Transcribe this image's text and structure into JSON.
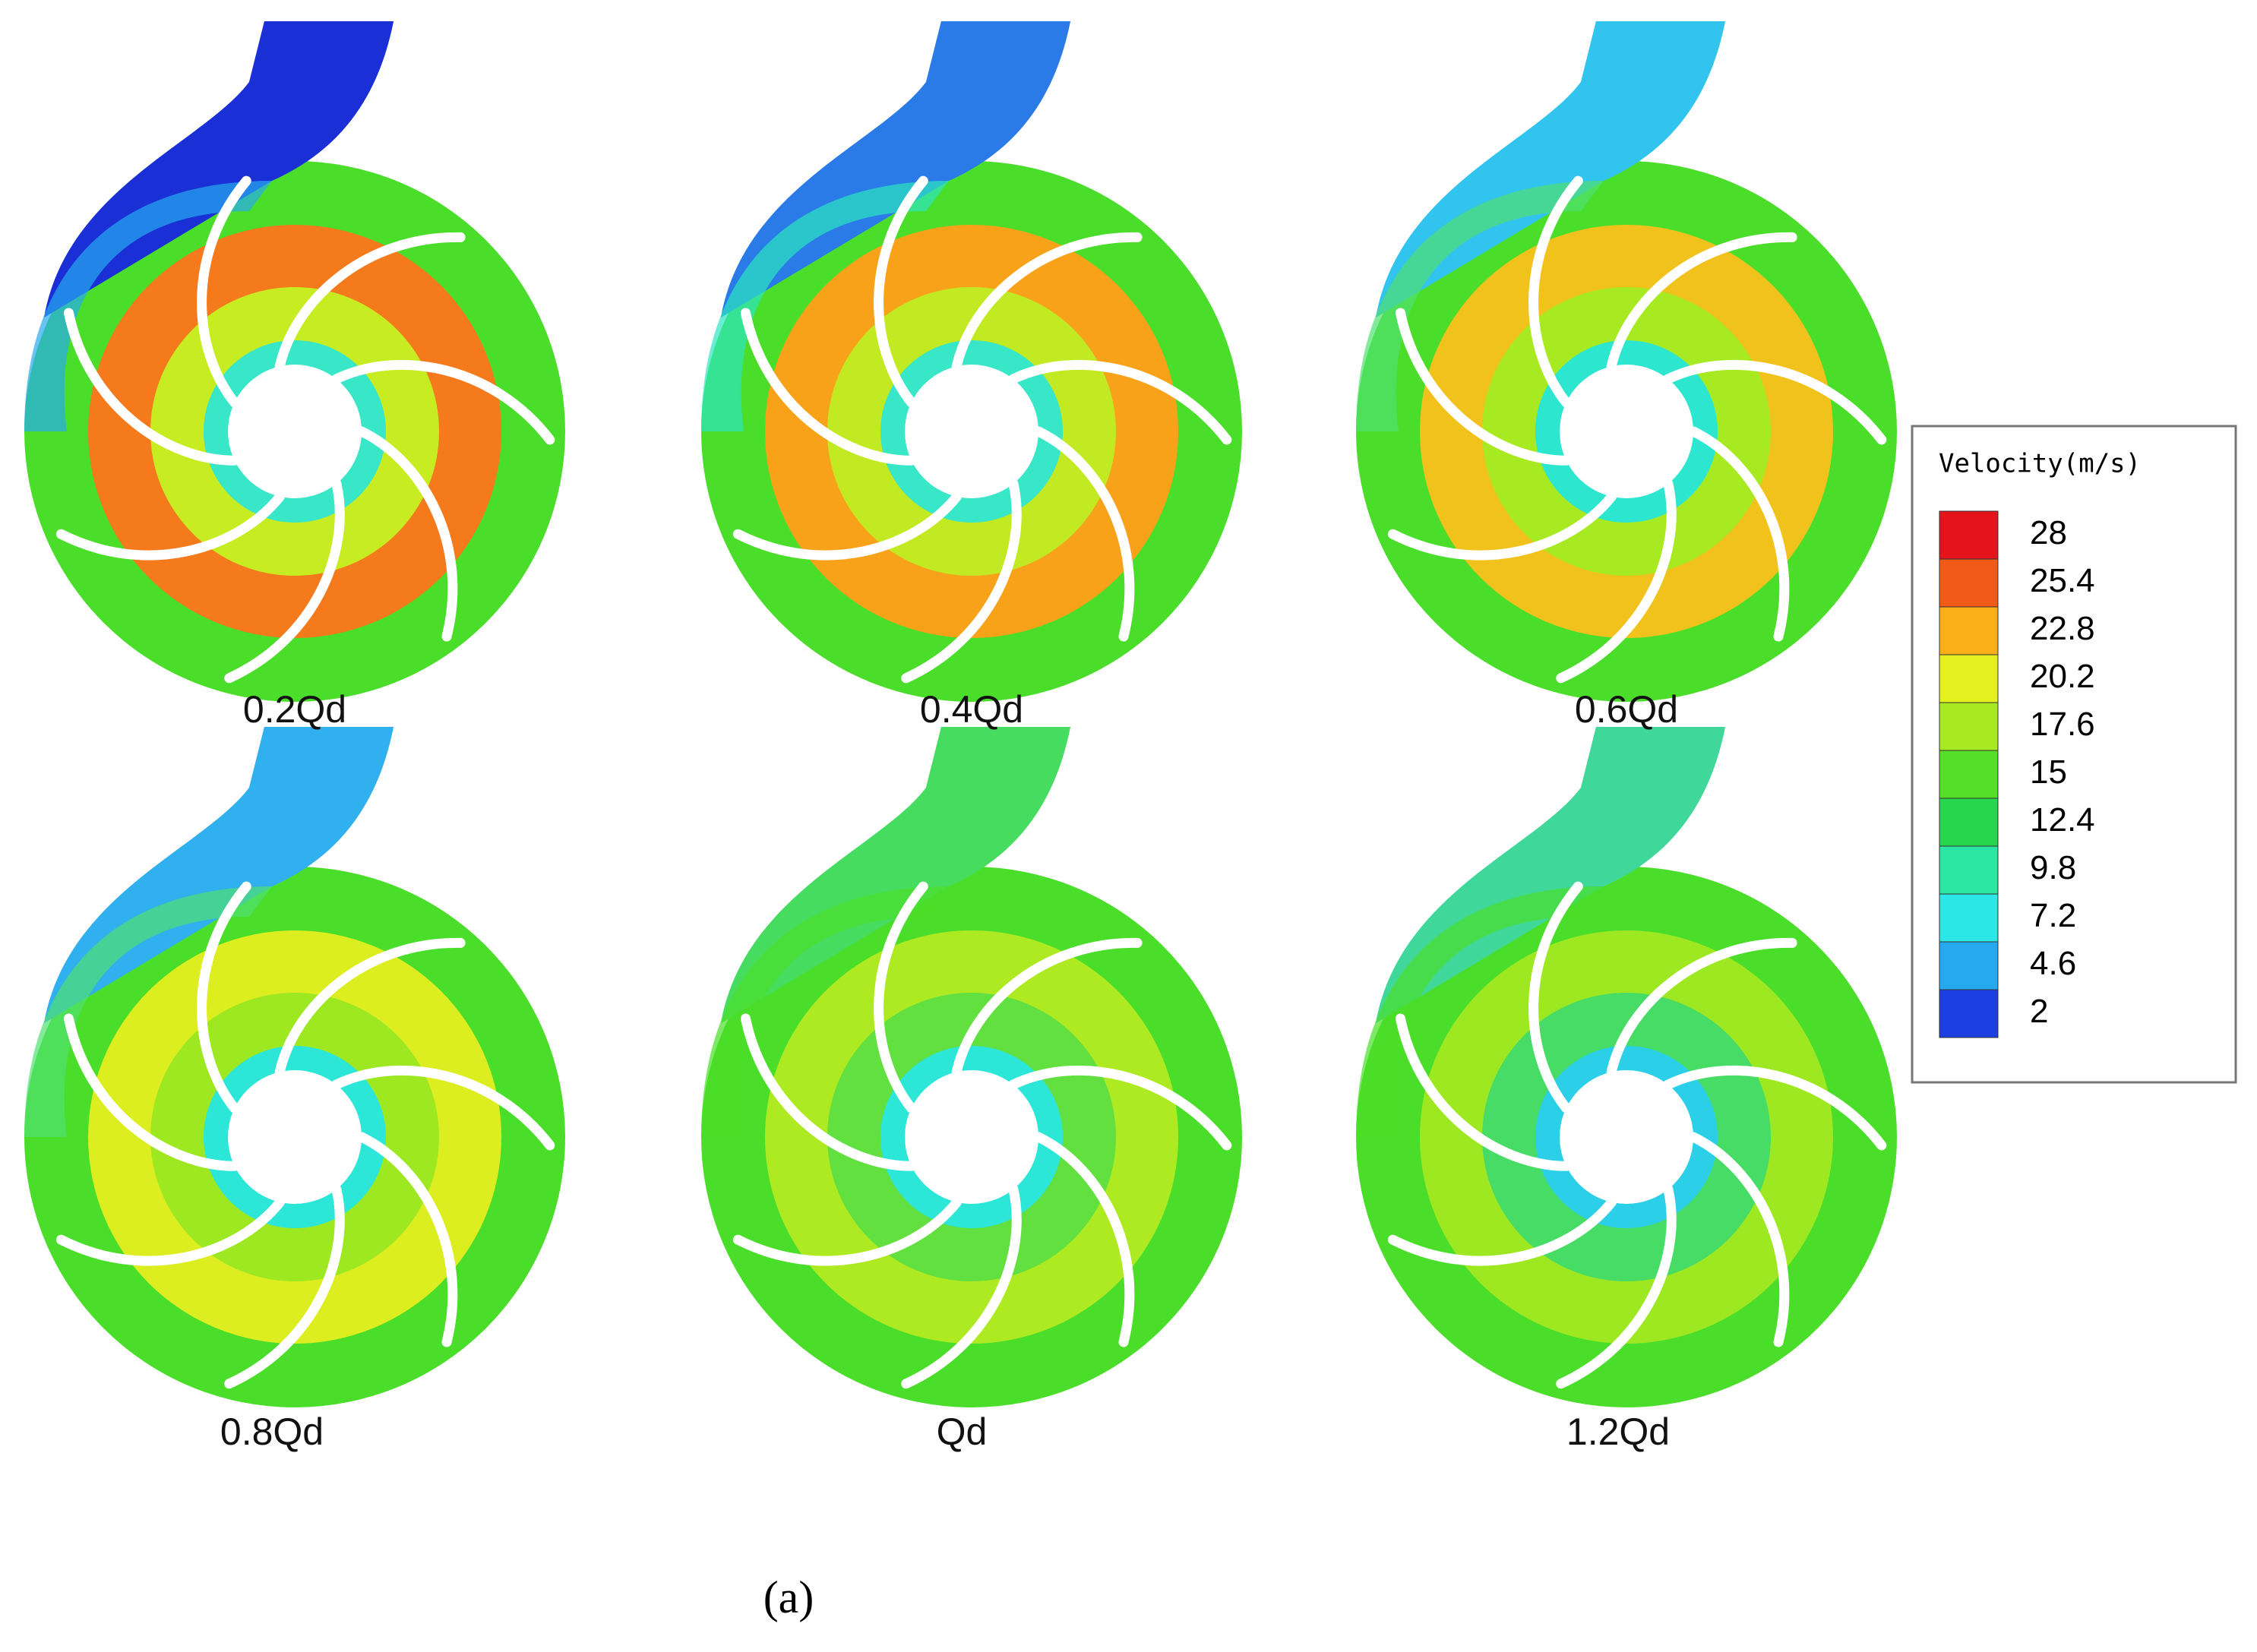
{
  "panels": [
    {
      "label": "0.2Qd"
    },
    {
      "label": "0.4Qd"
    },
    {
      "label": "0.6Qd"
    },
    {
      "label": "0.8Qd"
    },
    {
      "label": "Qd"
    },
    {
      "label": "1.2Qd"
    }
  ],
  "legend": {
    "title": "Velocity(m/s)",
    "ticks": [
      28,
      25.4,
      22.8,
      20.2,
      17.6,
      15,
      12.4,
      9.8,
      7.2,
      4.6,
      2
    ],
    "colors": [
      "#e5141c",
      "#f25a18",
      "#fbae18",
      "#e6f01f",
      "#a8ea22",
      "#57de26",
      "#26d64c",
      "#2ce6a3",
      "#2be7e6",
      "#27a9ef",
      "#1b3fe0"
    ]
  },
  "caption": "(a)"
}
